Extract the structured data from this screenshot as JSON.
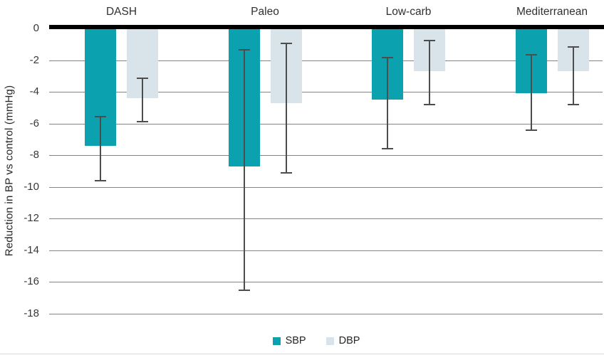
{
  "chart_data": {
    "type": "bar",
    "orientation": "vertical",
    "title": "",
    "ylabel": "Reduction in BP vs control (mmHg)",
    "categories": [
      "DASH",
      "Paleo",
      "Low-carb",
      "Mediterranean"
    ],
    "series": [
      {
        "name": "SBP",
        "color": "#0ba1af",
        "values": [
          -7.4,
          -8.7,
          -4.5,
          -4.1
        ],
        "error_high": [
          -5.5,
          -1.3,
          -1.8,
          -1.6
        ],
        "error_low": [
          -9.6,
          -16.5,
          -7.6,
          -6.4
        ]
      },
      {
        "name": "DBP",
        "color": "#d8e4e9",
        "values": [
          -4.4,
          -4.7,
          -2.7,
          -2.7
        ],
        "error_high": [
          -3.1,
          -0.9,
          -0.7,
          -1.1
        ],
        "error_low": [
          -5.9,
          -9.1,
          -4.8,
          -4.8
        ]
      }
    ],
    "ylim": [
      0,
      -18
    ],
    "yticks": [
      "0",
      "-2",
      "-4",
      "-6",
      "-8",
      "-10",
      "-12",
      "-14",
      "-16",
      "-18"
    ],
    "grid": true,
    "legend_position": "bottom",
    "legend": [
      "SBP",
      "DBP"
    ],
    "colors": {
      "zero_line": "#000000",
      "gridline": "#858585",
      "error_bar": "#4d4d4d",
      "text": "#303030",
      "background": "#ffffff"
    }
  }
}
